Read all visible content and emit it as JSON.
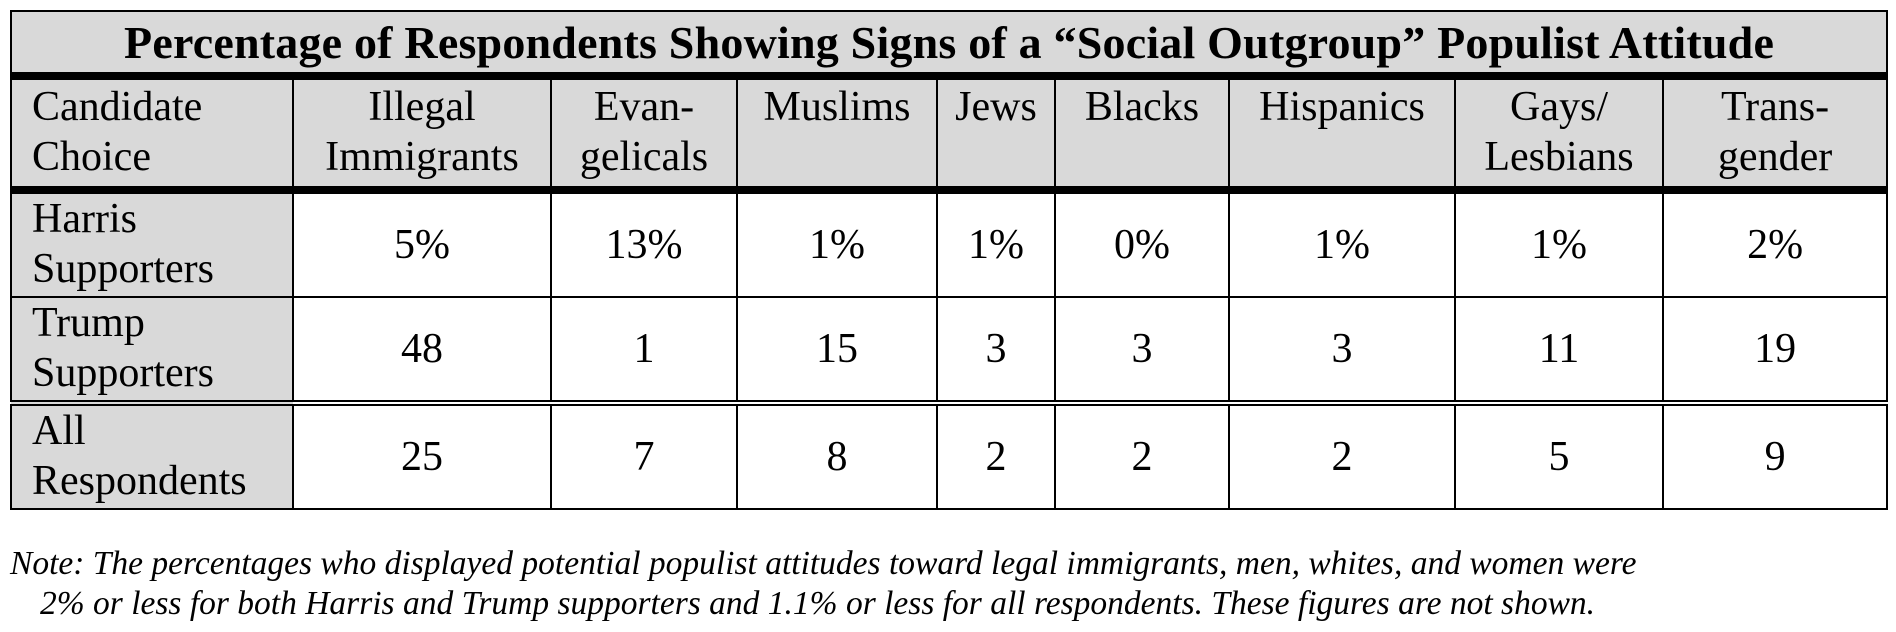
{
  "chart_data": {
    "type": "table",
    "title": "Percentage of Respondents Showing Signs of a “Social Outgroup” Populist Attitude",
    "columns": [
      [
        "Candidate",
        "Choice"
      ],
      [
        "Illegal",
        "Immigrants"
      ],
      [
        "Evan-",
        "gelicals"
      ],
      [
        "Muslims"
      ],
      [
        "Jews"
      ],
      [
        "Blacks"
      ],
      [
        "Hispanics"
      ],
      [
        "Gays/",
        "Lesbians"
      ],
      [
        "Trans-",
        "gender"
      ]
    ],
    "rows": [
      {
        "label": [
          "Harris",
          "Supporters"
        ],
        "values": [
          "5%",
          "13%",
          "1%",
          "1%",
          "0%",
          "1%",
          "1%",
          "2%"
        ]
      },
      {
        "label": [
          "Trump",
          "Supporters"
        ],
        "values": [
          "48",
          "1",
          "15",
          "3",
          "3",
          "3",
          "11",
          "19"
        ]
      },
      {
        "label": [
          "All",
          "Respondents"
        ],
        "values": [
          "25",
          "7",
          "8",
          "2",
          "2",
          "2",
          "5",
          "9"
        ]
      }
    ],
    "note": [
      "Note: The percentages who displayed potential populist attitudes toward legal immigrants, men, whites, and women were",
      "2% or less for both Harris and Trump supporters and 1.1% or less for all respondents. These figures are not shown."
    ]
  },
  "colors": {
    "header_background": "#d9d9d9",
    "cell_background": "#ffffff",
    "border": "#000000"
  }
}
